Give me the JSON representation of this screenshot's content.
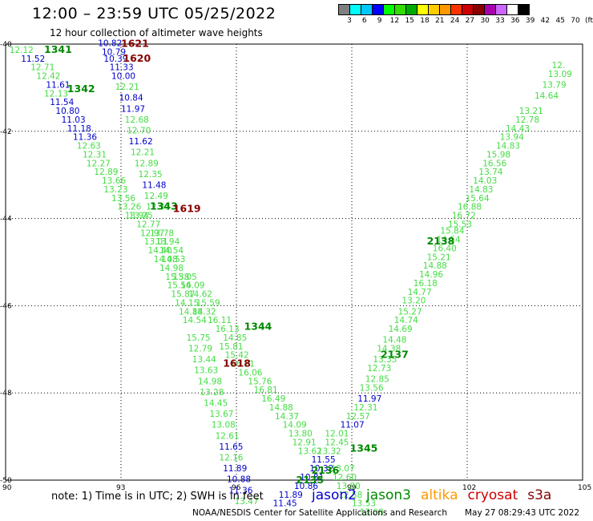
{
  "header": {
    "title": "12:00 – 23:59 UTC 05/25/2022",
    "subtitle": "12 hour collection of altimeter wave heights"
  },
  "legend": {
    "colors": [
      "#7f7f7f",
      "#00ffff",
      "#00c8ff",
      "#0000ff",
      "#00ff00",
      "#33dd00",
      "#00aa00",
      "#ffff00",
      "#ffcc00",
      "#ff9900",
      "#ff3300",
      "#cc0000",
      "#880000",
      "#aa00aa",
      "#cc66ff",
      "#ffffff",
      "#000000"
    ],
    "labels": [
      "3",
      "6",
      "9",
      "12",
      "15",
      "18",
      "21",
      "24",
      "27",
      "30",
      "33",
      "36",
      "39",
      "42",
      "45",
      "70",
      "(ft)"
    ]
  },
  "map": {
    "lon_labels": [
      "90",
      "93",
      "96",
      "99",
      "102",
      "105"
    ],
    "lat_labels": [
      "-40",
      "-42",
      "-44",
      "-46",
      "-48",
      "-50"
    ],
    "lon_range": [
      90,
      105
    ],
    "lat_range": [
      -40,
      -50
    ]
  },
  "colors": {
    "jason2": "#0000cc",
    "jason3": "#008800",
    "altika": "#ff9900",
    "cryosat": "#cc0000",
    "s3a": "#880000",
    "blue_val": "#0000cc",
    "green_val": "#44dd44",
    "dark_val": "#880000"
  },
  "pass_labels": [
    {
      "text": "1341",
      "lon": 91.0,
      "lat": -40.2,
      "c": "jason3"
    },
    {
      "text": "1342",
      "lon": 91.6,
      "lat": -41.1,
      "c": "jason3"
    },
    {
      "text": "1621",
      "lon": 93.0,
      "lat": -40.06,
      "c": "s3a"
    },
    {
      "text": "1620",
      "lon": 93.05,
      "lat": -40.4,
      "c": "s3a"
    },
    {
      "text": "1343",
      "lon": 93.75,
      "lat": -43.8,
      "c": "jason3"
    },
    {
      "text": "1619",
      "lon": 94.35,
      "lat": -43.85,
      "c": "s3a"
    },
    {
      "text": "1344",
      "lon": 96.2,
      "lat": -46.55,
      "c": "jason3"
    },
    {
      "text": "1618",
      "lon": 95.65,
      "lat": -47.4,
      "c": "s3a"
    },
    {
      "text": "2138",
      "lon": 100.95,
      "lat": -44.6,
      "c": "jason3"
    },
    {
      "text": "2137",
      "lon": 99.75,
      "lat": -47.2,
      "c": "jason3"
    },
    {
      "text": "1345",
      "lon": 98.95,
      "lat": -49.35,
      "c": "jason3"
    },
    {
      "text": "2136",
      "lon": 97.95,
      "lat": -49.85,
      "c": "jason3"
    },
    {
      "text": "2135",
      "lon": 97.55,
      "lat": -50.07,
      "c": "jason3"
    }
  ],
  "values": [
    {
      "t": "12.12",
      "lon": 90.1,
      "lat": -40.2,
      "c": "green_val"
    },
    {
      "t": "11.52",
      "lon": 90.4,
      "lat": -40.4,
      "c": "blue_val"
    },
    {
      "t": "12.71",
      "lon": 90.65,
      "lat": -40.6,
      "c": "green_val"
    },
    {
      "t": "12.42",
      "lon": 90.8,
      "lat": -40.8,
      "c": "green_val"
    },
    {
      "t": "11.61",
      "lon": 91.05,
      "lat": -41.0,
      "c": "blue_val"
    },
    {
      "t": "12.13",
      "lon": 91.0,
      "lat": -41.2,
      "c": "green_val"
    },
    {
      "t": "11.54",
      "lon": 91.15,
      "lat": -41.4,
      "c": "blue_val"
    },
    {
      "t": "10.80",
      "lon": 91.3,
      "lat": -41.6,
      "c": "blue_val"
    },
    {
      "t": "11.03",
      "lon": 91.45,
      "lat": -41.8,
      "c": "blue_val"
    },
    {
      "t": "11.18",
      "lon": 91.6,
      "lat": -42.0,
      "c": "blue_val"
    },
    {
      "t": "11.36",
      "lon": 91.75,
      "lat": -42.2,
      "c": "blue_val"
    },
    {
      "t": "12.63",
      "lon": 91.85,
      "lat": -42.4,
      "c": "green_val"
    },
    {
      "t": "12.31",
      "lon": 92.0,
      "lat": -42.6,
      "c": "green_val"
    },
    {
      "t": "12.27",
      "lon": 92.1,
      "lat": -42.8,
      "c": "green_val"
    },
    {
      "t": "12.89",
      "lon": 92.3,
      "lat": -43.0,
      "c": "green_val"
    },
    {
      "t": "13.66",
      "lon": 92.5,
      "lat": -43.2,
      "c": "green_val"
    },
    {
      "t": "13.23",
      "lon": 92.55,
      "lat": -43.4,
      "c": "green_val"
    },
    {
      "t": "13.56",
      "lon": 92.75,
      "lat": -43.6,
      "c": "green_val"
    },
    {
      "t": "13.26",
      "lon": 92.9,
      "lat": -43.8,
      "c": "green_val"
    },
    {
      "t": "13.94",
      "lon": 93.1,
      "lat": -44.0,
      "c": "green_val"
    },
    {
      "t": "10.82",
      "lon": 92.4,
      "lat": -40.05,
      "c": "blue_val"
    },
    {
      "t": "10.79",
      "lon": 92.5,
      "lat": -40.25,
      "c": "blue_val"
    },
    {
      "t": "10.39",
      "lon": 92.55,
      "lat": -40.4,
      "c": "blue_val"
    },
    {
      "t": "11.33",
      "lon": 92.7,
      "lat": -40.6,
      "c": "blue_val"
    },
    {
      "t": "10.00",
      "lon": 92.75,
      "lat": -40.8,
      "c": "blue_val"
    },
    {
      "t": "12.21",
      "lon": 92.85,
      "lat": -41.05,
      "c": "green_val"
    },
    {
      "t": "10.84",
      "lon": 92.95,
      "lat": -41.3,
      "c": "blue_val"
    },
    {
      "t": "11.97",
      "lon": 93.0,
      "lat": -41.55,
      "c": "blue_val"
    },
    {
      "t": "12.68",
      "lon": 93.1,
      "lat": -41.8,
      "c": "green_val"
    },
    {
      "t": "12.70",
      "lon": 93.15,
      "lat": -42.05,
      "c": "green_val"
    },
    {
      "t": "11.62",
      "lon": 93.2,
      "lat": -42.3,
      "c": "blue_val"
    },
    {
      "t": "12.21",
      "lon": 93.25,
      "lat": -42.55,
      "c": "green_val"
    },
    {
      "t": "12.89",
      "lon": 93.35,
      "lat": -42.8,
      "c": "green_val"
    },
    {
      "t": "12.35",
      "lon": 93.45,
      "lat": -43.05,
      "c": "green_val"
    },
    {
      "t": "11.48",
      "lon": 93.55,
      "lat": -43.3,
      "c": "blue_val"
    },
    {
      "t": "12.49",
      "lon": 93.6,
      "lat": -43.55,
      "c": "green_val"
    },
    {
      "t": "12.35",
      "lon": 93.65,
      "lat": -43.8,
      "c": "green_val"
    },
    {
      "t": "13.25",
      "lon": 93.2,
      "lat": -44.0,
      "c": "green_val"
    },
    {
      "t": "12.77",
      "lon": 93.4,
      "lat": -44.2,
      "c": "green_val"
    },
    {
      "t": "12.97",
      "lon": 93.5,
      "lat": -44.4,
      "c": "green_val"
    },
    {
      "t": "13.78",
      "lon": 93.75,
      "lat": -44.4,
      "c": "green_val"
    },
    {
      "t": "13.01",
      "lon": 93.6,
      "lat": -44.6,
      "c": "green_val"
    },
    {
      "t": "13.94",
      "lon": 93.9,
      "lat": -44.6,
      "c": "green_val"
    },
    {
      "t": "14.40",
      "lon": 93.7,
      "lat": -44.8,
      "c": "green_val"
    },
    {
      "t": "14.54",
      "lon": 94.0,
      "lat": -44.8,
      "c": "green_val"
    },
    {
      "t": "14.08",
      "lon": 93.85,
      "lat": -45.0,
      "c": "green_val"
    },
    {
      "t": "14.53",
      "lon": 94.05,
      "lat": -45.0,
      "c": "green_val"
    },
    {
      "t": "14.98",
      "lon": 94.0,
      "lat": -45.2,
      "c": "green_val"
    },
    {
      "t": "15.38",
      "lon": 94.15,
      "lat": -45.4,
      "c": "green_val"
    },
    {
      "t": "15.05",
      "lon": 94.35,
      "lat": -45.4,
      "c": "green_val"
    },
    {
      "t": "15.56",
      "lon": 94.2,
      "lat": -45.6,
      "c": "green_val"
    },
    {
      "t": "14.09",
      "lon": 94.55,
      "lat": -45.6,
      "c": "green_val"
    },
    {
      "t": "15.87",
      "lon": 94.3,
      "lat": -45.8,
      "c": "green_val"
    },
    {
      "t": "14.62",
      "lon": 94.75,
      "lat": -45.8,
      "c": "green_val"
    },
    {
      "t": "14.15",
      "lon": 94.4,
      "lat": -46.0,
      "c": "green_val"
    },
    {
      "t": "15.59",
      "lon": 94.95,
      "lat": -46.0,
      "c": "green_val"
    },
    {
      "t": "14.88",
      "lon": 94.5,
      "lat": -46.2,
      "c": "green_val"
    },
    {
      "t": "14.32",
      "lon": 94.85,
      "lat": -46.2,
      "c": "green_val"
    },
    {
      "t": "14.54",
      "lon": 94.6,
      "lat": -46.4,
      "c": "green_val"
    },
    {
      "t": "16.11",
      "lon": 95.25,
      "lat": -46.4,
      "c": "green_val"
    },
    {
      "t": "16.13",
      "lon": 95.45,
      "lat": -46.6,
      "c": "green_val"
    },
    {
      "t": "15.75",
      "lon": 94.7,
      "lat": -46.8,
      "c": "green_val"
    },
    {
      "t": "14.85",
      "lon": 95.65,
      "lat": -46.8,
      "c": "green_val"
    },
    {
      "t": "12.79",
      "lon": 94.75,
      "lat": -47.05,
      "c": "green_val"
    },
    {
      "t": "15.81",
      "lon": 95.55,
      "lat": -47.0,
      "c": "green_val"
    },
    {
      "t": "13.44",
      "lon": 94.85,
      "lat": -47.3,
      "c": "green_val"
    },
    {
      "t": "15.42",
      "lon": 95.7,
      "lat": -47.2,
      "c": "green_val"
    },
    {
      "t": "13.63",
      "lon": 94.9,
      "lat": -47.55,
      "c": "green_val"
    },
    {
      "t": "16.21",
      "lon": 95.85,
      "lat": -47.4,
      "c": "green_val"
    },
    {
      "t": "14.98",
      "lon": 95.0,
      "lat": -47.8,
      "c": "green_val"
    },
    {
      "t": "16.06",
      "lon": 96.05,
      "lat": -47.6,
      "c": "green_val"
    },
    {
      "t": "15.76",
      "lon": 96.3,
      "lat": -47.8,
      "c": "green_val"
    },
    {
      "t": "13.28",
      "lon": 95.05,
      "lat": -48.05,
      "c": "green_val"
    },
    {
      "t": "16.81",
      "lon": 96.45,
      "lat": -48.0,
      "c": "green_val"
    },
    {
      "t": "14.45",
      "lon": 95.15,
      "lat": -48.3,
      "c": "green_val"
    },
    {
      "t": "16.49",
      "lon": 96.65,
      "lat": -48.2,
      "c": "green_val"
    },
    {
      "t": "14.88",
      "lon": 96.85,
      "lat": -48.4,
      "c": "green_val"
    },
    {
      "t": "13.67",
      "lon": 95.3,
      "lat": -48.55,
      "c": "green_val"
    },
    {
      "t": "14.37",
      "lon": 97.0,
      "lat": -48.6,
      "c": "green_val"
    },
    {
      "t": "13.08",
      "lon": 95.35,
      "lat": -48.8,
      "c": "green_val"
    },
    {
      "t": "14.09",
      "lon": 97.2,
      "lat": -48.8,
      "c": "green_val"
    },
    {
      "t": "12.61",
      "lon": 95.45,
      "lat": -49.05,
      "c": "green_val"
    },
    {
      "t": "13.80",
      "lon": 97.35,
      "lat": -49.0,
      "c": "green_val"
    },
    {
      "t": "11.65",
      "lon": 95.55,
      "lat": -49.3,
      "c": "blue_val"
    },
    {
      "t": "12.91",
      "lon": 97.45,
      "lat": -49.2,
      "c": "green_val"
    },
    {
      "t": "12.16",
      "lon": 95.55,
      "lat": -49.55,
      "c": "green_val"
    },
    {
      "t": "13.62",
      "lon": 97.6,
      "lat": -49.4,
      "c": "green_val"
    },
    {
      "t": "11.89",
      "lon": 95.65,
      "lat": -49.8,
      "c": "blue_val"
    },
    {
      "t": "10.88",
      "lon": 95.75,
      "lat": -50.05,
      "c": "blue_val"
    },
    {
      "t": "11.36",
      "lon": 95.8,
      "lat": -50.3,
      "c": "blue_val"
    },
    {
      "t": "13.47",
      "lon": 95.95,
      "lat": -50.55,
      "c": "green_val"
    },
    {
      "t": "11.55",
      "lon": 97.95,
      "lat": -49.6,
      "c": "blue_val"
    },
    {
      "t": "10.32",
      "lon": 97.9,
      "lat": -49.8,
      "c": "blue_val"
    },
    {
      "t": "10.81",
      "lon": 97.65,
      "lat": -50.0,
      "c": "blue_val"
    },
    {
      "t": "10.86",
      "lon": 97.5,
      "lat": -50.2,
      "c": "blue_val"
    },
    {
      "t": "11.89",
      "lon": 97.1,
      "lat": -50.4,
      "c": "blue_val"
    },
    {
      "t": "11.45",
      "lon": 96.95,
      "lat": -50.6,
      "c": "blue_val"
    },
    {
      "t": "12.01",
      "lon": 98.3,
      "lat": -49.0,
      "c": "green_val"
    },
    {
      "t": "12.45",
      "lon": 98.3,
      "lat": -49.2,
      "c": "green_val"
    },
    {
      "t": "13.32",
      "lon": 98.1,
      "lat": -49.4,
      "c": "green_val"
    },
    {
      "t": "13.07",
      "lon": 98.45,
      "lat": -49.8,
      "c": "green_val"
    },
    {
      "t": "12.60",
      "lon": 98.5,
      "lat": -50.0,
      "c": "green_val"
    },
    {
      "t": "13.80",
      "lon": 98.6,
      "lat": -50.2,
      "c": "green_val"
    },
    {
      "t": "12.58",
      "lon": 98.65,
      "lat": -50.4,
      "c": "green_val"
    },
    {
      "t": "13.53",
      "lon": 99.0,
      "lat": -50.6,
      "c": "green_val"
    },
    {
      "t": "13.08",
      "lon": 99.2,
      "lat": -50.8,
      "c": "green_val"
    },
    {
      "t": "11.07",
      "lon": 98.7,
      "lat": -48.8,
      "c": "blue_val"
    },
    {
      "t": "12.57",
      "lon": 98.85,
      "lat": -48.6,
      "c": "green_val"
    },
    {
      "t": "12.31",
      "lon": 99.05,
      "lat": -48.4,
      "c": "green_val"
    },
    {
      "t": "11.97",
      "lon": 99.15,
      "lat": -48.2,
      "c": "blue_val"
    },
    {
      "t": "13.56",
      "lon": 99.2,
      "lat": -47.95,
      "c": "green_val"
    },
    {
      "t": "12.85",
      "lon": 99.35,
      "lat": -47.75,
      "c": "green_val"
    },
    {
      "t": "12.73",
      "lon": 99.4,
      "lat": -47.5,
      "c": "green_val"
    },
    {
      "t": "13.35",
      "lon": 99.55,
      "lat": -47.3,
      "c": "green_val"
    },
    {
      "t": "14.38",
      "lon": 99.65,
      "lat": -47.05,
      "c": "green_val"
    },
    {
      "t": "14.48",
      "lon": 99.8,
      "lat": -46.85,
      "c": "green_val"
    },
    {
      "t": "14.69",
      "lon": 99.95,
      "lat": -46.6,
      "c": "green_val"
    },
    {
      "t": "14.74",
      "lon": 100.1,
      "lat": -46.4,
      "c": "green_val"
    },
    {
      "t": "15.27",
      "lon": 100.2,
      "lat": -46.2,
      "c": "green_val"
    },
    {
      "t": "13.20",
      "lon": 100.3,
      "lat": -45.95,
      "c": "green_val"
    },
    {
      "t": "14.77",
      "lon": 100.45,
      "lat": -45.75,
      "c": "green_val"
    },
    {
      "t": "16.18",
      "lon": 100.6,
      "lat": -45.55,
      "c": "green_val"
    },
    {
      "t": "14.96",
      "lon": 100.75,
      "lat": -45.35,
      "c": "green_val"
    },
    {
      "t": "14.88",
      "lon": 100.85,
      "lat": -45.15,
      "c": "green_val"
    },
    {
      "t": "15.21",
      "lon": 100.95,
      "lat": -44.95,
      "c": "green_val"
    },
    {
      "t": "16.40",
      "lon": 101.1,
      "lat": -44.75,
      "c": "green_val"
    },
    {
      "t": "14.54",
      "lon": 101.2,
      "lat": -44.55,
      "c": "green_val"
    },
    {
      "t": "15.84",
      "lon": 101.3,
      "lat": -44.35,
      "c": "green_val"
    },
    {
      "t": "15.53",
      "lon": 101.5,
      "lat": -44.2,
      "c": "green_val"
    },
    {
      "t": "16.72",
      "lon": 101.6,
      "lat": -44.0,
      "c": "green_val"
    },
    {
      "t": "16.88",
      "lon": 101.75,
      "lat": -43.8,
      "c": "green_val"
    },
    {
      "t": "15.64",
      "lon": 101.95,
      "lat": -43.6,
      "c": "green_val"
    },
    {
      "t": "14.83",
      "lon": 102.05,
      "lat": -43.4,
      "c": "green_val"
    },
    {
      "t": "14.03",
      "lon": 102.15,
      "lat": -43.2,
      "c": "green_val"
    },
    {
      "t": "13.74",
      "lon": 102.3,
      "lat": -43.0,
      "c": "green_val"
    },
    {
      "t": "16.56",
      "lon": 102.4,
      "lat": -42.8,
      "c": "green_val"
    },
    {
      "t": "15.98",
      "lon": 102.5,
      "lat": -42.6,
      "c": "green_val"
    },
    {
      "t": "14.83",
      "lon": 102.75,
      "lat": -42.4,
      "c": "green_val"
    },
    {
      "t": "13.94",
      "lon": 102.85,
      "lat": -42.2,
      "c": "green_val"
    },
    {
      "t": "14.43",
      "lon": 103.0,
      "lat": -42.0,
      "c": "green_val"
    },
    {
      "t": "12.78",
      "lon": 103.25,
      "lat": -41.8,
      "c": "green_val"
    },
    {
      "t": "13.21",
      "lon": 103.35,
      "lat": -41.6,
      "c": "green_val"
    },
    {
      "t": "14.64",
      "lon": 103.75,
      "lat": -41.25,
      "c": "green_val"
    },
    {
      "t": "13.79",
      "lon": 103.95,
      "lat": -41.0,
      "c": "green_val"
    },
    {
      "t": "13.09",
      "lon": 104.1,
      "lat": -40.75,
      "c": "green_val"
    },
    {
      "t": "12.",
      "lon": 104.2,
      "lat": -40.55,
      "c": "green_val"
    }
  ],
  "footer": {
    "note": "note: 1) Time is in UTC; 2) SWH is in feet",
    "satellites": [
      {
        "name": "jason2",
        "c": "jason2"
      },
      {
        "name": "jason3",
        "c": "jason3"
      },
      {
        "name": "altika",
        "c": "altika"
      },
      {
        "name": "cryosat",
        "c": "cryosat"
      },
      {
        "name": "s3a",
        "c": "s3a"
      }
    ],
    "credit": "NOAA/NESDIS Center for Satellite Applications and Research",
    "timestamp": "May 27 08:29:43 UTC 2022"
  }
}
